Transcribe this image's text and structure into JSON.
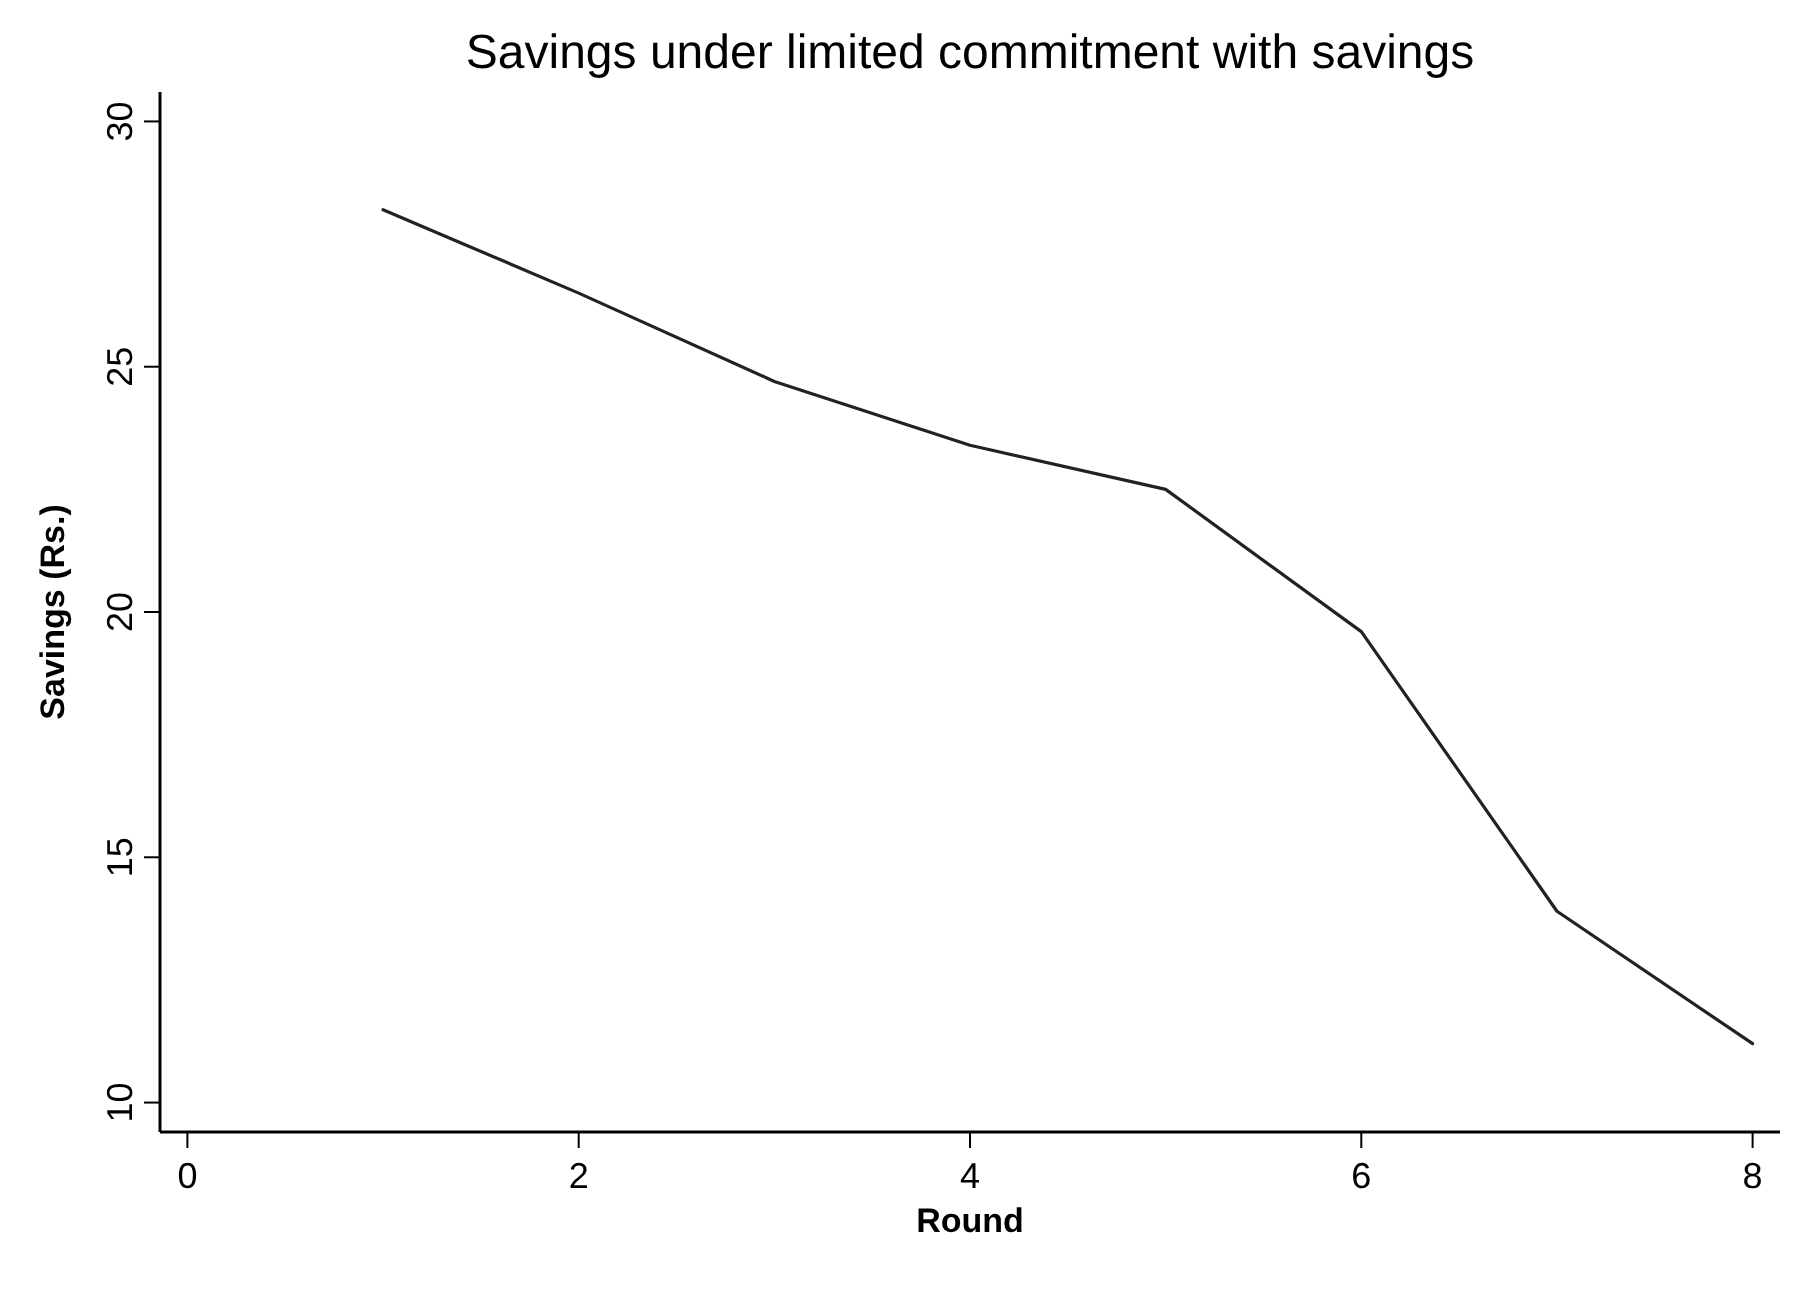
{
  "chart_data": {
    "type": "line",
    "title": "Savings under limited commitment with savings",
    "xlabel": "Round",
    "ylabel": "Savings (Rs.)",
    "x": [
      1,
      2,
      3,
      4,
      5,
      6,
      7,
      8
    ],
    "series": [
      {
        "color": "#222222",
        "values": [
          28.2,
          26.5,
          24.7,
          23.4,
          22.5,
          19.6,
          13.9,
          11.2
        ]
      }
    ],
    "xlim": [
      -0.14,
      8.14
    ],
    "xticks": [
      0,
      2,
      4,
      6,
      8
    ],
    "ylim": [
      9.4,
      30.6
    ],
    "yticks": [
      10,
      15,
      20,
      25,
      30
    ],
    "marker": "none",
    "line_style": "solid"
  }
}
